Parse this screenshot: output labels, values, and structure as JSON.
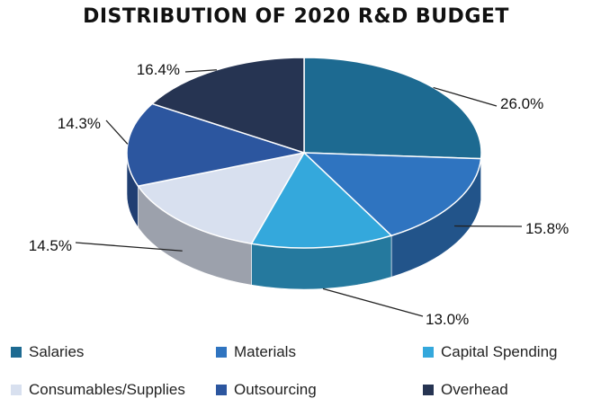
{
  "chart_data": {
    "type": "pie",
    "title": "DISTRIBUTION OF 2020 R&D BUDGET",
    "labels": [
      "Salaries",
      "Materials",
      "Capital Spending",
      "Consumables/Supplies",
      "Outsourcing",
      "Overhead"
    ],
    "values": [
      26.0,
      15.8,
      13.0,
      14.5,
      14.3,
      16.4
    ],
    "value_labels": [
      "26.0%",
      "15.8%",
      "13.0%",
      "14.5%",
      "14.3%",
      "16.4%"
    ],
    "colors": [
      "#1d6a91",
      "#2f74c0",
      "#34a8dc",
      "#d8e0ef",
      "#2c569f",
      "#263452"
    ],
    "legend_position": "bottom",
    "style": "3d-pie"
  }
}
